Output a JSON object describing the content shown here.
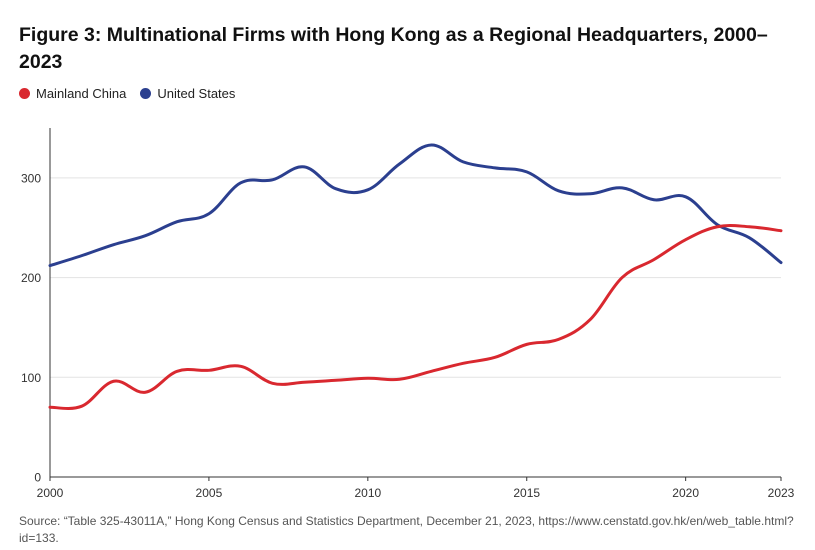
{
  "title": "Figure 3: Multinational Firms with Hong Kong as a Regional Headquarters, 2000–2023",
  "legend": [
    {
      "label": "Mainland China",
      "color": "#d9282f"
    },
    {
      "label": "United States",
      "color": "#2b3f8f"
    }
  ],
  "source": "Source: “Table 325-43011A,” Hong Kong Census and Statistics Department, December 21, 2023, https://www.censtatd.gov.hk/en/web_table.html?id=133.",
  "chart_data": {
    "type": "line",
    "title": "Figure 3: Multinational Firms with Hong Kong as a Regional Headquarters, 2000–2023",
    "xlabel": "",
    "ylabel": "",
    "x": [
      2000,
      2001,
      2002,
      2003,
      2004,
      2005,
      2006,
      2007,
      2008,
      2009,
      2010,
      2011,
      2012,
      2013,
      2014,
      2015,
      2016,
      2017,
      2018,
      2019,
      2020,
      2021,
      2022,
      2023
    ],
    "xlim": [
      2000,
      2023
    ],
    "ylim": [
      0,
      350
    ],
    "xticks": [
      2000,
      2005,
      2010,
      2015,
      2020,
      2023
    ],
    "yticks": [
      0,
      100,
      200,
      300
    ],
    "grid": true,
    "legend_position": "top-left",
    "series": [
      {
        "name": "Mainland China",
        "color": "#d9282f",
        "values": [
          70,
          71,
          96,
          85,
          106,
          107,
          111,
          94,
          95,
          97,
          99,
          98,
          106,
          114,
          120,
          133,
          138,
          158,
          200,
          218,
          238,
          251,
          251,
          247
        ]
      },
      {
        "name": "United States",
        "color": "#2b3f8f",
        "values": [
          212,
          222,
          233,
          242,
          256,
          264,
          295,
          298,
          311,
          289,
          288,
          314,
          333,
          316,
          310,
          306,
          287,
          284,
          290,
          278,
          281,
          253,
          240,
          215
        ]
      }
    ]
  }
}
